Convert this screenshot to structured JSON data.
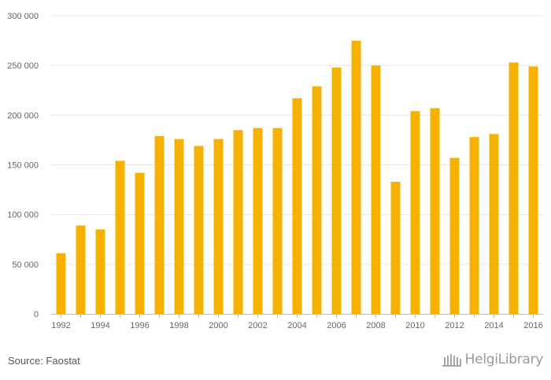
{
  "chart_data": {
    "type": "bar",
    "title": "",
    "xlabel": "",
    "ylabel": "",
    "ylim": [
      0,
      300000
    ],
    "yticks": [
      0,
      50000,
      100000,
      150000,
      200000,
      250000,
      300000
    ],
    "ytick_labels": [
      "0",
      "50 000",
      "100 000",
      "150 000",
      "200 000",
      "250 000",
      "300 000"
    ],
    "categories": [
      "1992",
      "1993",
      "1994",
      "1995",
      "1996",
      "1997",
      "1998",
      "1999",
      "2000",
      "2001",
      "2002",
      "2003",
      "2004",
      "2005",
      "2006",
      "2007",
      "2008",
      "2009",
      "2010",
      "2011",
      "2012",
      "2013",
      "2014",
      "2015",
      "2016"
    ],
    "xtick_labels": [
      "1992",
      "",
      "1994",
      "",
      "1996",
      "",
      "1998",
      "",
      "2000",
      "",
      "2002",
      "",
      "2004",
      "",
      "2006",
      "",
      "2008",
      "",
      "2010",
      "",
      "2012",
      "",
      "2014",
      "",
      "2016"
    ],
    "values": [
      61000,
      89000,
      85000,
      154000,
      142000,
      179000,
      176000,
      169000,
      176000,
      185000,
      187000,
      187000,
      217000,
      229000,
      248000,
      275000,
      250000,
      133000,
      204000,
      207000,
      157000,
      178000,
      181000,
      253000,
      249000
    ],
    "bar_color": "#f5b200",
    "grid": true
  },
  "footer": {
    "source": "Source: Faostat",
    "logo_text": "HelgiLibrary"
  }
}
